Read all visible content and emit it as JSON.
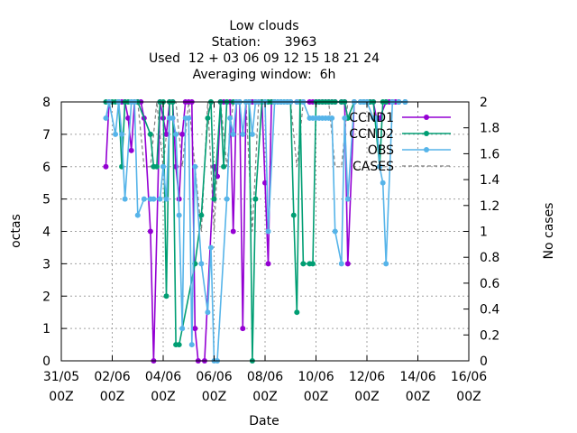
{
  "chart_data": {
    "type": "line",
    "title_lines": [
      "Low clouds",
      "Station:      3963",
      "Used  12 + 03 06 09 12 15 18 21 24",
      "Averaging window:  6h"
    ],
    "xlabel": "Date",
    "ylabel": "octas",
    "y2label": "No cases",
    "xlim": [
      0,
      360
    ],
    "ylim": [
      0,
      8
    ],
    "y2lim": [
      0,
      2
    ],
    "grid": true,
    "legend_position": "top-right",
    "x_ticks": [
      {
        "x": 0,
        "line1": "31/05",
        "line2": "00Z"
      },
      {
        "x": 48,
        "line1": "02/06",
        "line2": "00Z"
      },
      {
        "x": 96,
        "line1": "04/06",
        "line2": "00Z"
      },
      {
        "x": 144,
        "line1": "06/06",
        "line2": "00Z"
      },
      {
        "x": 192,
        "line1": "08/06",
        "line2": "00Z"
      },
      {
        "x": 240,
        "line1": "10/06",
        "line2": "00Z"
      },
      {
        "x": 288,
        "line1": "12/06",
        "line2": "00Z"
      },
      {
        "x": 336,
        "line1": "14/06",
        "line2": "00Z"
      },
      {
        "x": 384,
        "line1": "16/06",
        "line2": "00Z"
      }
    ],
    "y_ticks": [
      "0",
      "1",
      "2",
      "3",
      "4",
      "5",
      "6",
      "7",
      "8"
    ],
    "y2_ticks": [
      "0",
      "0.2",
      "0.4",
      "0.6",
      "0.8",
      "1",
      "1.2",
      "1.4",
      "1.6",
      "1.8",
      "2"
    ],
    "series": [
      {
        "name": "CCND1",
        "color": "#9400d3",
        "marker": "circle",
        "points": [
          [
            42,
            6
          ],
          [
            45,
            8
          ],
          [
            54,
            8
          ],
          [
            57,
            8
          ],
          [
            60,
            8
          ],
          [
            63,
            7.5
          ],
          [
            66,
            6.5
          ],
          [
            69,
            8
          ],
          [
            72,
            8
          ],
          [
            75,
            8
          ],
          [
            78,
            7.5
          ],
          [
            84,
            4
          ],
          [
            87,
            0
          ],
          [
            93,
            8
          ],
          [
            96,
            7.5
          ],
          [
            99,
            7
          ],
          [
            102,
            8
          ],
          [
            105,
            8
          ],
          [
            108,
            6
          ],
          [
            111,
            5
          ],
          [
            114,
            7
          ],
          [
            117,
            8
          ],
          [
            120,
            8
          ],
          [
            123,
            8
          ],
          [
            126,
            1
          ],
          [
            129,
            0
          ],
          [
            135,
            0
          ],
          [
            144,
            6
          ],
          [
            147,
            5.7
          ],
          [
            150,
            8
          ],
          [
            153,
            8
          ],
          [
            159,
            8
          ],
          [
            162,
            4
          ],
          [
            165,
            8
          ],
          [
            168,
            8
          ],
          [
            171,
            1
          ],
          [
            174,
            8
          ],
          [
            177,
            8
          ],
          [
            180,
            8
          ],
          [
            183,
            8
          ],
          [
            186,
            8
          ],
          [
            189,
            8
          ],
          [
            192,
            5.5
          ],
          [
            195,
            3
          ],
          [
            198,
            8
          ],
          [
            201,
            8
          ],
          [
            207,
            8
          ],
          [
            213,
            8
          ],
          [
            216,
            8
          ],
          [
            222,
            8
          ],
          [
            228,
            8
          ],
          [
            234,
            8
          ],
          [
            237,
            8
          ],
          [
            240,
            8
          ],
          [
            243,
            8
          ],
          [
            246,
            8
          ],
          [
            249,
            8
          ],
          [
            252,
            8
          ],
          [
            255,
            8
          ],
          [
            258,
            8
          ],
          [
            264,
            8
          ],
          [
            267,
            8
          ],
          [
            270,
            3
          ],
          [
            276,
            8
          ],
          [
            282,
            8
          ],
          [
            285,
            8
          ],
          [
            288,
            8
          ],
          [
            291,
            8
          ],
          [
            294,
            8
          ],
          [
            297,
            7.5
          ],
          [
            300,
            7.5
          ],
          [
            306,
            8
          ],
          [
            309,
            8
          ],
          [
            312,
            8
          ],
          [
            315,
            8
          ],
          [
            318,
            8
          ],
          [
            324,
            8
          ]
        ]
      },
      {
        "name": "CCND2",
        "color": "#009e73",
        "marker": "circle",
        "points": [
          [
            42,
            8
          ],
          [
            48,
            8
          ],
          [
            51,
            8
          ],
          [
            54,
            8
          ],
          [
            57,
            6
          ],
          [
            60,
            8
          ],
          [
            63,
            8
          ],
          [
            66,
            8
          ],
          [
            69,
            8
          ],
          [
            72,
            8
          ],
          [
            84,
            7
          ],
          [
            87,
            6
          ],
          [
            90,
            6
          ],
          [
            93,
            8
          ],
          [
            96,
            8
          ],
          [
            99,
            2
          ],
          [
            102,
            8
          ],
          [
            105,
            8
          ],
          [
            108,
            0.5
          ],
          [
            111,
            0.5
          ],
          [
            126,
            3
          ],
          [
            132,
            4.5
          ],
          [
            138,
            7.5
          ],
          [
            141,
            8
          ],
          [
            144,
            5
          ],
          [
            150,
            8
          ],
          [
            153,
            6
          ],
          [
            156,
            8
          ],
          [
            162,
            8
          ],
          [
            168,
            8
          ],
          [
            174,
            8
          ],
          [
            177,
            8
          ],
          [
            180,
            0
          ],
          [
            183,
            5
          ],
          [
            189,
            8
          ],
          [
            192,
            8
          ],
          [
            195,
            8
          ],
          [
            198,
            8
          ],
          [
            201,
            8
          ],
          [
            204,
            8
          ],
          [
            207,
            8
          ],
          [
            210,
            8
          ],
          [
            213,
            8
          ],
          [
            216,
            8
          ],
          [
            219,
            4.5
          ],
          [
            222,
            1.5
          ],
          [
            225,
            8
          ],
          [
            228,
            3
          ],
          [
            234,
            3
          ],
          [
            237,
            3
          ],
          [
            240,
            8
          ],
          [
            243,
            8
          ],
          [
            246,
            8
          ],
          [
            249,
            8
          ],
          [
            252,
            8
          ],
          [
            255,
            8
          ],
          [
            258,
            8
          ],
          [
            264,
            8
          ],
          [
            267,
            8
          ],
          [
            270,
            7.5
          ],
          [
            276,
            8
          ],
          [
            282,
            8
          ],
          [
            285,
            8
          ],
          [
            288,
            8
          ],
          [
            291,
            8
          ],
          [
            294,
            8
          ],
          [
            300,
            6
          ],
          [
            303,
            8
          ],
          [
            306,
            8
          ],
          [
            312,
            8
          ],
          [
            318,
            8
          ],
          [
            324,
            8
          ]
        ]
      },
      {
        "name": "OBS",
        "color": "#56b4e9",
        "marker": "circle",
        "points": [
          [
            42,
            7.5
          ],
          [
            45,
            8
          ],
          [
            51,
            7
          ],
          [
            54,
            8
          ],
          [
            57,
            7
          ],
          [
            60,
            5
          ],
          [
            66,
            8
          ],
          [
            69,
            8
          ],
          [
            72,
            4.5
          ],
          [
            78,
            5
          ],
          [
            84,
            5
          ],
          [
            87,
            5
          ],
          [
            93,
            5
          ],
          [
            96,
            6
          ],
          [
            99,
            5
          ],
          [
            102,
            7.5
          ],
          [
            105,
            7.5
          ],
          [
            108,
            7
          ],
          [
            111,
            4.5
          ],
          [
            114,
            1
          ],
          [
            117,
            7.5
          ],
          [
            120,
            7.5
          ],
          [
            123,
            0.5
          ],
          [
            126,
            6
          ],
          [
            132,
            3
          ],
          [
            138,
            1.5
          ],
          [
            141,
            3.5
          ],
          [
            144,
            0
          ],
          [
            147,
            0
          ],
          [
            156,
            5
          ],
          [
            159,
            7.5
          ],
          [
            162,
            7
          ],
          [
            165,
            8
          ],
          [
            168,
            8
          ],
          [
            171,
            7
          ],
          [
            174,
            8
          ],
          [
            177,
            8
          ],
          [
            180,
            7
          ],
          [
            183,
            8
          ],
          [
            186,
            8
          ],
          [
            192,
            8
          ],
          [
            195,
            4
          ],
          [
            201,
            8
          ],
          [
            204,
            8
          ],
          [
            207,
            8
          ],
          [
            210,
            8
          ],
          [
            213,
            8
          ],
          [
            216,
            8
          ],
          [
            222,
            8
          ],
          [
            228,
            8
          ],
          [
            234,
            7.5
          ],
          [
            237,
            7.5
          ],
          [
            240,
            7.5
          ],
          [
            243,
            7.5
          ],
          [
            246,
            7.5
          ],
          [
            249,
            7.5
          ],
          [
            252,
            7.5
          ],
          [
            255,
            7.5
          ],
          [
            258,
            4
          ],
          [
            264,
            3
          ],
          [
            267,
            7.5
          ],
          [
            270,
            5
          ],
          [
            276,
            8
          ],
          [
            282,
            8
          ],
          [
            285,
            8
          ],
          [
            288,
            8
          ],
          [
            294,
            7.5
          ],
          [
            297,
            7.5
          ],
          [
            300,
            6
          ],
          [
            303,
            5.5
          ],
          [
            306,
            3
          ],
          [
            312,
            8
          ],
          [
            318,
            8
          ],
          [
            324,
            8
          ]
        ]
      },
      {
        "name": "CASES",
        "color": "#808080",
        "axis": "y2",
        "dashed": true,
        "points": [
          [
            42,
            2
          ],
          [
            48,
            2
          ],
          [
            54,
            2
          ],
          [
            60,
            2
          ],
          [
            66,
            2
          ],
          [
            72,
            2
          ],
          [
            78,
            1.5
          ],
          [
            84,
            1.5
          ],
          [
            90,
            2
          ],
          [
            96,
            1.5
          ],
          [
            102,
            2
          ],
          [
            108,
            2
          ],
          [
            114,
            1.5
          ],
          [
            120,
            2
          ],
          [
            126,
            1.5
          ],
          [
            132,
            1
          ],
          [
            138,
            2
          ],
          [
            144,
            1
          ],
          [
            150,
            2
          ],
          [
            156,
            1.5
          ],
          [
            162,
            2
          ],
          [
            168,
            2
          ],
          [
            174,
            2
          ],
          [
            180,
            1
          ],
          [
            186,
            2
          ],
          [
            192,
            2
          ],
          [
            198,
            2
          ],
          [
            204,
            2
          ],
          [
            210,
            2
          ],
          [
            216,
            2
          ],
          [
            222,
            1.5
          ],
          [
            228,
            2
          ],
          [
            234,
            2
          ],
          [
            240,
            2
          ],
          [
            246,
            2
          ],
          [
            252,
            2
          ],
          [
            258,
            1.5
          ],
          [
            264,
            1.5
          ],
          [
            270,
            2
          ],
          [
            276,
            2
          ],
          [
            282,
            2
          ],
          [
            288,
            2
          ],
          [
            294,
            2
          ],
          [
            300,
            1.5
          ],
          [
            306,
            1.5
          ]
        ]
      }
    ]
  }
}
